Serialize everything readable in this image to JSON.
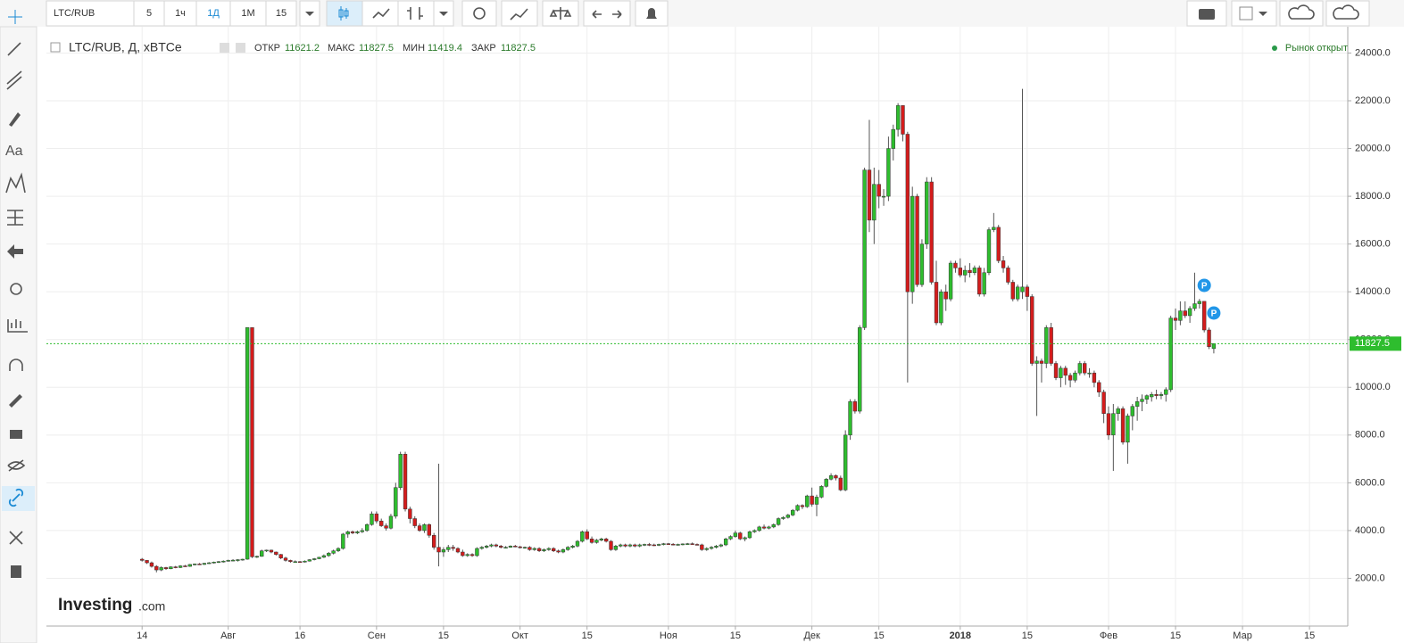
{
  "toolbar": {
    "symbol": "LTC/RUB",
    "intervals": [
      "5",
      "1ч",
      "1Д",
      "1М",
      "15"
    ]
  },
  "header": {
    "title": "LTC/RUB, Д, xBTCe",
    "open_label": "ОТКР",
    "open": "11621.2",
    "high_label": "МАКС",
    "high": "11827.5",
    "low_label": "МИН",
    "low": "11419.4",
    "close_label": "ЗАКР",
    "close": "11827.5"
  },
  "status": "Рынок открыт",
  "logo": {
    "main": "Investing",
    "suffix": ".com"
  },
  "chart_data": {
    "type": "candlestick",
    "up_color": "#2ebd2e",
    "down_color": "#d41c1c",
    "grid": true,
    "xlim": [
      -20,
      252
    ],
    "ylim": [
      0,
      25100
    ],
    "xticks": [
      {
        "value": 0,
        "label": "14"
      },
      {
        "value": 18,
        "label": "Авг"
      },
      {
        "value": 33,
        "label": "16"
      },
      {
        "value": 49,
        "label": "Сен"
      },
      {
        "value": 63,
        "label": "15"
      },
      {
        "value": 79,
        "label": "Окт"
      },
      {
        "value": 93,
        "label": "15"
      },
      {
        "value": 110,
        "label": "Ноя"
      },
      {
        "value": 124,
        "label": "15"
      },
      {
        "value": 140,
        "label": "Дек"
      },
      {
        "value": 154,
        "label": "15"
      },
      {
        "value": 171,
        "label": "2018"
      },
      {
        "value": 185,
        "label": "15"
      },
      {
        "value": 202,
        "label": "Фев"
      },
      {
        "value": 216,
        "label": "15"
      },
      {
        "value": 230,
        "label": "Мар"
      },
      {
        "value": 244,
        "label": "15"
      }
    ],
    "yticks": [
      {
        "value": 2000,
        "label": "2000.0"
      },
      {
        "value": 4000,
        "label": "4000.0"
      },
      {
        "value": 6000,
        "label": "6000.0"
      },
      {
        "value": 8000,
        "label": "8000.0"
      },
      {
        "value": 10000,
        "label": "10000.0"
      },
      {
        "value": 12000,
        "label": "12000.0"
      },
      {
        "value": 14000,
        "label": "14000.0"
      },
      {
        "value": 16000,
        "label": "16000.0"
      },
      {
        "value": 18000,
        "label": "18000.0"
      },
      {
        "value": 20000,
        "label": "20000.0"
      },
      {
        "value": 22000,
        "label": "22000.0"
      },
      {
        "value": 24000,
        "label": "24000.0"
      }
    ],
    "last_price": {
      "value": 11827.5,
      "label": "11827.5"
    },
    "markers": [
      {
        "x": 222,
        "y": 14270,
        "label": "P"
      },
      {
        "x": 224,
        "y": 13110,
        "label": "P"
      }
    ],
    "candles": [
      [
        2800,
        2850,
        2700,
        2750
      ],
      [
        2750,
        2760,
        2600,
        2650
      ],
      [
        2650,
        2700,
        2450,
        2500
      ],
      [
        2500,
        2550,
        2250,
        2350
      ],
      [
        2350,
        2500,
        2300,
        2450
      ],
      [
        2450,
        2480,
        2350,
        2400
      ],
      [
        2400,
        2500,
        2380,
        2480
      ],
      [
        2480,
        2520,
        2420,
        2450
      ],
      [
        2450,
        2550,
        2430,
        2520
      ],
      [
        2520,
        2560,
        2480,
        2500
      ],
      [
        2500,
        2600,
        2480,
        2580
      ],
      [
        2580,
        2620,
        2540,
        2600
      ],
      [
        2600,
        2640,
        2560,
        2580
      ],
      [
        2580,
        2650,
        2560,
        2630
      ],
      [
        2630,
        2680,
        2600,
        2650
      ],
      [
        2650,
        2700,
        2620,
        2680
      ],
      [
        2680,
        2720,
        2640,
        2700
      ],
      [
        2700,
        2750,
        2660,
        2720
      ],
      [
        2720,
        2780,
        2700,
        2750
      ],
      [
        2750,
        2800,
        2720,
        2760
      ],
      [
        2760,
        2800,
        2700,
        2780
      ],
      [
        2780,
        2820,
        2740,
        2800
      ],
      [
        2800,
        12500,
        2780,
        12500
      ],
      [
        12500,
        12500,
        2850,
        2900
      ],
      [
        2900,
        2950,
        2850,
        2920
      ],
      [
        2920,
        3200,
        2900,
        3150
      ],
      [
        3150,
        3200,
        3100,
        3180
      ],
      [
        3180,
        3200,
        3050,
        3100
      ],
      [
        3100,
        3120,
        2950,
        3000
      ],
      [
        3000,
        3020,
        2800,
        2850
      ],
      [
        2850,
        2900,
        2700,
        2750
      ],
      [
        2750,
        2780,
        2650,
        2700
      ],
      [
        2700,
        2750,
        2650,
        2700
      ],
      [
        2700,
        2720,
        2650,
        2680
      ],
      [
        2680,
        2750,
        2660,
        2720
      ],
      [
        2720,
        2800,
        2700,
        2780
      ],
      [
        2780,
        2850,
        2750,
        2820
      ],
      [
        2820,
        2900,
        2800,
        2880
      ],
      [
        2880,
        3000,
        2850,
        2950
      ],
      [
        2950,
        3100,
        2900,
        3050
      ],
      [
        3050,
        3200,
        3000,
        3150
      ],
      [
        3150,
        3300,
        3100,
        3250
      ],
      [
        3250,
        3900,
        3200,
        3850
      ],
      [
        3850,
        4000,
        3700,
        3950
      ],
      [
        3950,
        4000,
        3850,
        3900
      ],
      [
        3900,
        4000,
        3850,
        3950
      ],
      [
        3950,
        4100,
        3900,
        4000
      ],
      [
        4000,
        4300,
        3950,
        4250
      ],
      [
        4250,
        4800,
        4200,
        4700
      ],
      [
        4700,
        4800,
        4300,
        4400
      ],
      [
        4400,
        4500,
        4150,
        4200
      ],
      [
        4200,
        4300,
        4000,
        4100
      ],
      [
        4100,
        4700,
        4050,
        4600
      ],
      [
        4600,
        6000,
        4500,
        5800
      ],
      [
        5800,
        7300,
        5700,
        7200
      ],
      [
        7200,
        7300,
        4800,
        4900
      ],
      [
        4900,
        5000,
        4300,
        4500
      ],
      [
        4500,
        4600,
        4100,
        4200
      ],
      [
        4200,
        4300,
        3950,
        4000
      ],
      [
        4000,
        4300,
        3900,
        4250
      ],
      [
        4250,
        4300,
        3700,
        3800
      ],
      [
        3800,
        3900,
        3200,
        3300
      ],
      [
        3300,
        6800,
        2500,
        3100
      ],
      [
        3100,
        3300,
        2900,
        3200
      ],
      [
        3200,
        3400,
        3100,
        3300
      ],
      [
        3300,
        3400,
        3150,
        3250
      ],
      [
        3250,
        3300,
        3050,
        3100
      ],
      [
        3100,
        3200,
        2900,
        2950
      ],
      [
        2950,
        3050,
        2900,
        3000
      ],
      [
        3000,
        3050,
        2900,
        2950
      ],
      [
        2950,
        3300,
        2900,
        3250
      ],
      [
        3250,
        3350,
        3200,
        3300
      ],
      [
        3300,
        3400,
        3250,
        3350
      ],
      [
        3350,
        3450,
        3300,
        3400
      ],
      [
        3400,
        3450,
        3300,
        3350
      ],
      [
        3350,
        3400,
        3250,
        3300
      ],
      [
        3300,
        3350,
        3250,
        3300
      ],
      [
        3300,
        3380,
        3280,
        3350
      ],
      [
        3350,
        3400,
        3300,
        3320
      ],
      [
        3320,
        3360,
        3250,
        3280
      ],
      [
        3280,
        3330,
        3240,
        3300
      ],
      [
        3300,
        3350,
        3150,
        3200
      ],
      [
        3200,
        3300,
        3150,
        3250
      ],
      [
        3250,
        3300,
        3100,
        3150
      ],
      [
        3150,
        3250,
        3100,
        3200
      ],
      [
        3200,
        3300,
        3150,
        3250
      ],
      [
        3250,
        3300,
        3100,
        3150
      ],
      [
        3150,
        3200,
        3050,
        3100
      ],
      [
        3100,
        3250,
        3050,
        3200
      ],
      [
        3200,
        3350,
        3150,
        3300
      ],
      [
        3300,
        3400,
        3250,
        3350
      ],
      [
        3350,
        3600,
        3300,
        3550
      ],
      [
        3550,
        4000,
        3500,
        3950
      ],
      [
        3950,
        4050,
        3600,
        3650
      ],
      [
        3650,
        3750,
        3450,
        3500
      ],
      [
        3500,
        3650,
        3450,
        3600
      ],
      [
        3600,
        3700,
        3550,
        3650
      ],
      [
        3650,
        3700,
        3500,
        3550
      ],
      [
        3550,
        3600,
        3150,
        3200
      ],
      [
        3200,
        3400,
        3150,
        3350
      ],
      [
        3350,
        3450,
        3300,
        3400
      ],
      [
        3400,
        3450,
        3300,
        3350
      ],
      [
        3350,
        3450,
        3300,
        3400
      ],
      [
        3400,
        3450,
        3300,
        3350
      ],
      [
        3350,
        3450,
        3300,
        3400
      ],
      [
        3400,
        3450,
        3350,
        3420
      ],
      [
        3420,
        3480,
        3350,
        3400
      ],
      [
        3400,
        3450,
        3350,
        3380
      ],
      [
        3380,
        3450,
        3350,
        3420
      ],
      [
        3420,
        3480,
        3380,
        3450
      ],
      [
        3450,
        3480,
        3400,
        3430
      ],
      [
        3430,
        3470,
        3380,
        3400
      ],
      [
        3400,
        3450,
        3370,
        3420
      ],
      [
        3420,
        3460,
        3380,
        3440
      ],
      [
        3440,
        3480,
        3400,
        3450
      ],
      [
        3450,
        3500,
        3400,
        3420
      ],
      [
        3420,
        3460,
        3380,
        3400
      ],
      [
        3400,
        3450,
        3150,
        3200
      ],
      [
        3200,
        3300,
        3150,
        3250
      ],
      [
        3250,
        3350,
        3200,
        3300
      ],
      [
        3300,
        3400,
        3250,
        3350
      ],
      [
        3350,
        3450,
        3300,
        3400
      ],
      [
        3400,
        3700,
        3350,
        3650
      ],
      [
        3650,
        3800,
        3600,
        3750
      ],
      [
        3750,
        4000,
        3700,
        3900
      ],
      [
        3900,
        3950,
        3600,
        3650
      ],
      [
        3650,
        3750,
        3550,
        3700
      ],
      [
        3700,
        4000,
        3650,
        3950
      ],
      [
        3950,
        4050,
        3900,
        4000
      ],
      [
        4000,
        4200,
        3950,
        4150
      ],
      [
        4150,
        4250,
        4050,
        4100
      ],
      [
        4100,
        4200,
        4050,
        4150
      ],
      [
        4150,
        4300,
        4100,
        4250
      ],
      [
        4250,
        4550,
        4200,
        4500
      ],
      [
        4500,
        4600,
        4450,
        4550
      ],
      [
        4550,
        4700,
        4500,
        4650
      ],
      [
        4650,
        4900,
        4600,
        4850
      ],
      [
        4850,
        5100,
        4800,
        5050
      ],
      [
        5050,
        5100,
        4900,
        5000
      ],
      [
        5000,
        5500,
        4950,
        5450
      ],
      [
        5450,
        5800,
        5000,
        5100
      ],
      [
        5100,
        5500,
        4600,
        5400
      ],
      [
        5400,
        5900,
        5350,
        5850
      ],
      [
        5850,
        6200,
        5800,
        6150
      ],
      [
        6150,
        6400,
        6100,
        6300
      ],
      [
        6300,
        6350,
        6100,
        6200
      ],
      [
        6200,
        6300,
        5650,
        5700
      ],
      [
        5700,
        8200,
        5650,
        8000
      ],
      [
        8000,
        9500,
        7800,
        9400
      ],
      [
        9400,
        9500,
        8900,
        9000
      ],
      [
        9000,
        12600,
        8900,
        12500
      ],
      [
        12500,
        19200,
        12400,
        19100
      ],
      [
        19100,
        21200,
        16500,
        17000
      ],
      [
        17000,
        19200,
        16000,
        18500
      ],
      [
        18500,
        19100,
        17500,
        18000
      ],
      [
        18000,
        18300,
        17600,
        18000
      ],
      [
        18000,
        20500,
        17800,
        20000
      ],
      [
        20000,
        21000,
        19500,
        20800
      ],
      [
        20800,
        21900,
        20500,
        21800
      ],
      [
        21800,
        21800,
        20300,
        20600
      ],
      [
        20600,
        20700,
        10200,
        14000
      ],
      [
        14000,
        18400,
        13500,
        18000
      ],
      [
        18000,
        18100,
        14200,
        14300
      ],
      [
        14300,
        16200,
        14200,
        16000
      ],
      [
        16000,
        18800,
        15800,
        18600
      ],
      [
        18600,
        18800,
        14300,
        14400
      ],
      [
        14400,
        15300,
        12600,
        12700
      ],
      [
        12700,
        14100,
        12600,
        14000
      ],
      [
        14000,
        14300,
        13200,
        13700
      ],
      [
        13700,
        15300,
        13600,
        15200
      ],
      [
        15200,
        15300,
        14800,
        15000
      ],
      [
        15000,
        15400,
        14600,
        14700
      ],
      [
        14700,
        15100,
        14400,
        14900
      ],
      [
        14900,
        15200,
        14600,
        14800
      ],
      [
        14800,
        15100,
        14700,
        15000
      ],
      [
        15000,
        15100,
        13800,
        13900
      ],
      [
        13900,
        15000,
        13800,
        14800
      ],
      [
        14800,
        16700,
        14700,
        16600
      ],
      [
        16600,
        17300,
        16500,
        16700
      ],
      [
        16700,
        16800,
        15200,
        15300
      ],
      [
        15300,
        15500,
        14800,
        15000
      ],
      [
        15000,
        15100,
        14300,
        14400
      ],
      [
        14400,
        14500,
        13600,
        13700
      ],
      [
        13700,
        14300,
        13600,
        14200
      ],
      [
        14000,
        22500,
        13700,
        14200
      ],
      [
        14200,
        14300,
        13200,
        13800
      ],
      [
        13800,
        13900,
        10900,
        11000
      ],
      [
        11000,
        11300,
        8800,
        11100
      ],
      [
        11100,
        11200,
        10200,
        11000
      ],
      [
        11000,
        12600,
        10800,
        12500
      ],
      [
        12500,
        12700,
        10900,
        11000
      ],
      [
        11000,
        11100,
        10300,
        10400
      ],
      [
        10400,
        10900,
        10000,
        10800
      ],
      [
        10800,
        10900,
        10100,
        10500
      ],
      [
        10500,
        10600,
        10000,
        10300
      ],
      [
        10300,
        10700,
        10200,
        10600
      ],
      [
        10600,
        11100,
        10500,
        11000
      ],
      [
        11000,
        11100,
        10500,
        10600
      ],
      [
        10600,
        10800,
        10400,
        10600
      ],
      [
        10600,
        10700,
        10000,
        10200
      ],
      [
        10200,
        10300,
        9600,
        9800
      ],
      [
        9800,
        9900,
        8500,
        8900
      ],
      [
        8900,
        9200,
        7800,
        8000
      ],
      [
        8000,
        9300,
        6500,
        8900
      ],
      [
        8900,
        9200,
        8600,
        9100
      ],
      [
        9100,
        9200,
        7600,
        7700
      ],
      [
        7700,
        8900,
        6800,
        8800
      ],
      [
        8800,
        9300,
        8200,
        9200
      ],
      [
        9200,
        9600,
        8600,
        9400
      ],
      [
        9400,
        9700,
        9000,
        9500
      ],
      [
        9500,
        9700,
        9300,
        9650
      ],
      [
        9600,
        9800,
        9400,
        9700
      ],
      [
        9700,
        9900,
        9500,
        9650
      ],
      [
        9650,
        9800,
        9500,
        9700
      ],
      [
        9700,
        10000,
        9400,
        9900
      ],
      [
        9900,
        13000,
        9800,
        12900
      ],
      [
        12900,
        13300,
        12400,
        12800
      ],
      [
        12800,
        13600,
        12600,
        13200
      ],
      [
        13200,
        13600,
        12900,
        13000
      ],
      [
        13000,
        13400,
        12700,
        13300
      ],
      [
        13300,
        14800,
        13200,
        13500
      ],
      [
        13500,
        13700,
        13300,
        13600
      ],
      [
        13600,
        13600,
        12300,
        12400
      ],
      [
        12400,
        12500,
        11600,
        11700
      ],
      [
        11621.2,
        11827.5,
        11419.4,
        11827.5
      ]
    ]
  }
}
